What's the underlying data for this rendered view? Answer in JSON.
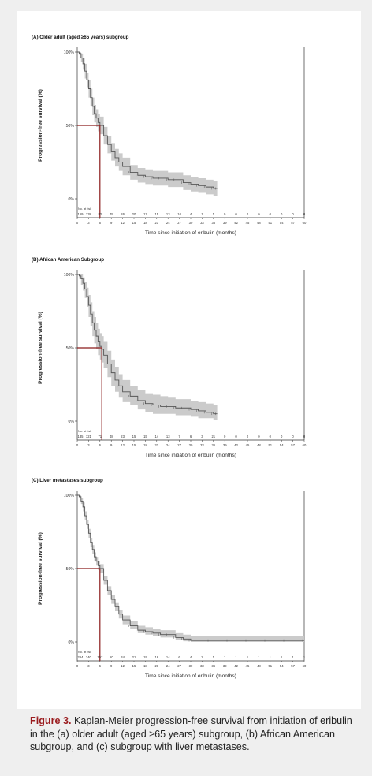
{
  "caption": {
    "figure_label": "Figure 3.",
    "text": " Kaplan-Meier progression-free survival from initiation of eribulin in the (a) older adult (aged ≥65 years) subgroup, (b) African American subgroup, and (c) subgroup with liver metastases."
  },
  "colors": {
    "curve": "#555555",
    "band": "#c8c8c8",
    "median_line": "#8b1a1a",
    "caption_accent": "#9a1b1e"
  },
  "chart_data": [
    {
      "type": "line",
      "title": "(A) Older adult (aged ≥65 years) subgroup",
      "xlabel": "Time since initiation of eribulin (months)",
      "ylabel": "Progression-free survival (%)",
      "xlim": [
        0,
        60
      ],
      "ylim": [
        0,
        100
      ],
      "x_ticks": [
        0,
        3,
        6,
        9,
        12,
        15,
        18,
        21,
        24,
        27,
        30,
        33,
        36,
        39,
        42,
        45,
        48,
        51,
        54,
        57,
        60
      ],
      "y_ticks": [
        "0%",
        "50%",
        "100%"
      ],
      "median_pfs": 6,
      "series": [
        {
          "x": [
            0,
            0.5,
            1,
            1.5,
            2,
            2.5,
            3,
            3.5,
            4,
            4.5,
            5,
            5.5,
            6,
            7,
            8,
            9,
            10,
            11,
            12,
            14,
            16,
            18,
            20,
            22,
            24,
            26,
            28,
            30,
            32,
            34,
            36,
            37
          ],
          "y": [
            100,
            99,
            96,
            92,
            87,
            81,
            75,
            69,
            63,
            58,
            55,
            52,
            50,
            43,
            37,
            32,
            28,
            25,
            22,
            18,
            16,
            15,
            14,
            14,
            13,
            13,
            11,
            10,
            9,
            8,
            7,
            7
          ],
          "lower": [
            100,
            98,
            93,
            88,
            82,
            76,
            69,
            63,
            57,
            52,
            49,
            46,
            44,
            37,
            31,
            26,
            22,
            19,
            16,
            13,
            11,
            10,
            9,
            9,
            8,
            8,
            6,
            5,
            4,
            3,
            2,
            2
          ],
          "upper": [
            100,
            100,
            99,
            96,
            92,
            86,
            81,
            75,
            69,
            64,
            61,
            58,
            56,
            49,
            43,
            38,
            34,
            31,
            28,
            23,
            21,
            20,
            19,
            19,
            18,
            18,
            16,
            15,
            14,
            13,
            12,
            12
          ]
        }
      ],
      "risk_label": "No. at risk",
      "at_risk": [
        "169",
        "138",
        "80",
        "45",
        "26",
        "20",
        "17",
        "15",
        "13",
        "10",
        "4",
        "1",
        "1",
        "0",
        "0",
        "0",
        "0",
        "0",
        "0",
        "0",
        "0"
      ]
    },
    {
      "type": "line",
      "title": "(B) African American Subgroup",
      "xlabel": "Time since initiation of eribulin (months)",
      "ylabel": "Progression-free survival (%)",
      "xlim": [
        0,
        60
      ],
      "ylim": [
        0,
        100
      ],
      "x_ticks": [
        0,
        3,
        6,
        9,
        12,
        15,
        18,
        21,
        24,
        27,
        30,
        33,
        36,
        39,
        42,
        45,
        48,
        51,
        54,
        57,
        60
      ],
      "y_ticks": [
        "0%",
        "50%",
        "100%"
      ],
      "median_pfs": 6.5,
      "series": [
        {
          "x": [
            0,
            0.5,
            1,
            1.5,
            2,
            2.5,
            3,
            3.5,
            4,
            4.5,
            5,
            5.5,
            6,
            6.5,
            7,
            8,
            9,
            10,
            11,
            12,
            14,
            16,
            18,
            20,
            22,
            24,
            26,
            28,
            30,
            32,
            34,
            36,
            37
          ],
          "y": [
            100,
            99,
            97,
            94,
            90,
            85,
            79,
            73,
            67,
            62,
            58,
            54,
            51,
            49,
            45,
            39,
            33,
            28,
            24,
            20,
            17,
            14,
            12,
            11,
            10,
            10,
            9,
            9,
            8,
            7,
            6,
            5,
            5
          ],
          "lower": [
            100,
            97,
            93,
            89,
            84,
            78,
            71,
            65,
            58,
            53,
            49,
            45,
            42,
            40,
            36,
            30,
            24,
            20,
            16,
            13,
            11,
            8,
            6,
            5,
            5,
            5,
            4,
            4,
            3,
            2,
            2,
            1,
            1
          ],
          "upper": [
            100,
            100,
            100,
            98,
            95,
            91,
            86,
            81,
            75,
            71,
            67,
            63,
            60,
            58,
            54,
            48,
            42,
            37,
            32,
            28,
            24,
            21,
            19,
            18,
            17,
            16,
            15,
            15,
            14,
            13,
            12,
            11,
            11
          ]
        }
      ],
      "risk_label": "No. at risk",
      "at_risk": [
        "135",
        "121",
        "71",
        "48",
        "23",
        "15",
        "15",
        "14",
        "13",
        "7",
        "6",
        "3",
        "21",
        "0",
        "0",
        "0",
        "0",
        "0",
        "0",
        "0",
        "0"
      ]
    },
    {
      "type": "line",
      "title": "(C) Liver metastases subgroup",
      "xlabel": "Time since initiation of eribulin (months)",
      "ylabel": "Progression-free survival (%)",
      "xlim": [
        0,
        60
      ],
      "ylim": [
        0,
        100
      ],
      "x_ticks": [
        0,
        3,
        6,
        9,
        12,
        15,
        18,
        21,
        24,
        27,
        30,
        33,
        36,
        39,
        42,
        45,
        48,
        51,
        54,
        57,
        60
      ],
      "y_ticks": [
        "0%",
        "50%",
        "100%"
      ],
      "median_pfs": 6,
      "series": [
        {
          "x": [
            0,
            0.5,
            1,
            1.5,
            2,
            2.5,
            3,
            3.5,
            4,
            4.5,
            5,
            5.5,
            6,
            7,
            8,
            9,
            10,
            11,
            12,
            14,
            16,
            18,
            20,
            22,
            24,
            26,
            28,
            30,
            35,
            40,
            45,
            50,
            55,
            60
          ],
          "y": [
            100,
            99,
            96,
            92,
            86,
            80,
            74,
            68,
            63,
            58,
            55,
            52,
            50,
            42,
            35,
            29,
            24,
            19,
            15,
            11,
            8,
            7,
            6,
            5,
            5,
            3,
            2,
            1,
            1,
            1,
            1,
            1,
            1,
            1
          ],
          "lower": [
            100,
            98,
            94,
            89,
            83,
            77,
            71,
            65,
            60,
            55,
            52,
            49,
            47,
            39,
            32,
            26,
            21,
            16,
            12,
            9,
            6,
            5,
            4,
            3,
            3,
            1.5,
            0.5,
            0,
            0,
            0,
            0,
            0,
            0,
            0
          ],
          "upper": [
            100,
            100,
            98,
            95,
            89,
            83,
            77,
            71,
            66,
            61,
            58,
            55,
            53,
            45,
            38,
            32,
            27,
            22,
            18,
            14,
            11,
            10,
            9,
            8,
            8,
            6,
            5,
            4,
            4,
            4,
            4,
            4,
            4,
            4
          ]
        }
      ],
      "risk_label": "No. at risk",
      "at_risk": [
        "264",
        "240",
        "107",
        "60",
        "34",
        "21",
        "19",
        "16",
        "14",
        "6",
        "4",
        "2",
        "1",
        "1",
        "1",
        "1",
        "1",
        "1",
        "1",
        "1",
        "1"
      ]
    }
  ]
}
